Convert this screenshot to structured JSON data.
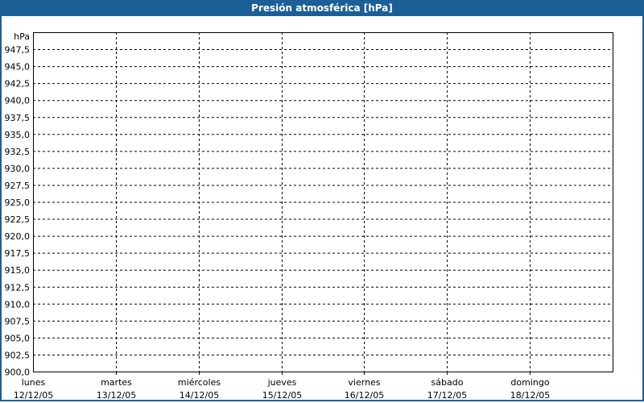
{
  "chart_data": {
    "type": "line",
    "title": "Presión atmosférica [hPa]",
    "ylabel": "hPa",
    "ylim": [
      900,
      950
    ],
    "yticks": [
      "900,0",
      "902,5",
      "905,0",
      "907,5",
      "910,0",
      "912,5",
      "915,0",
      "917,5",
      "920,0",
      "922,5",
      "925,0",
      "927,5",
      "930,0",
      "932,5",
      "935,0",
      "937,5",
      "940,0",
      "942,5",
      "945,0",
      "947,5"
    ],
    "categories": [
      {
        "day": "lunes",
        "date": "12/12/05"
      },
      {
        "day": "martes",
        "date": "13/12/05"
      },
      {
        "day": "miércoles",
        "date": "14/12/05"
      },
      {
        "day": "jueves",
        "date": "15/12/05"
      },
      {
        "day": "viernes",
        "date": "16/12/05"
      },
      {
        "day": "sábado",
        "date": "17/12/05"
      },
      {
        "day": "domingo",
        "date": "18/12/05"
      }
    ],
    "series": [],
    "grid": true,
    "grid_style": "dashed",
    "colors": {
      "titlebar": "#1c5f96",
      "grid": "#000000"
    }
  }
}
